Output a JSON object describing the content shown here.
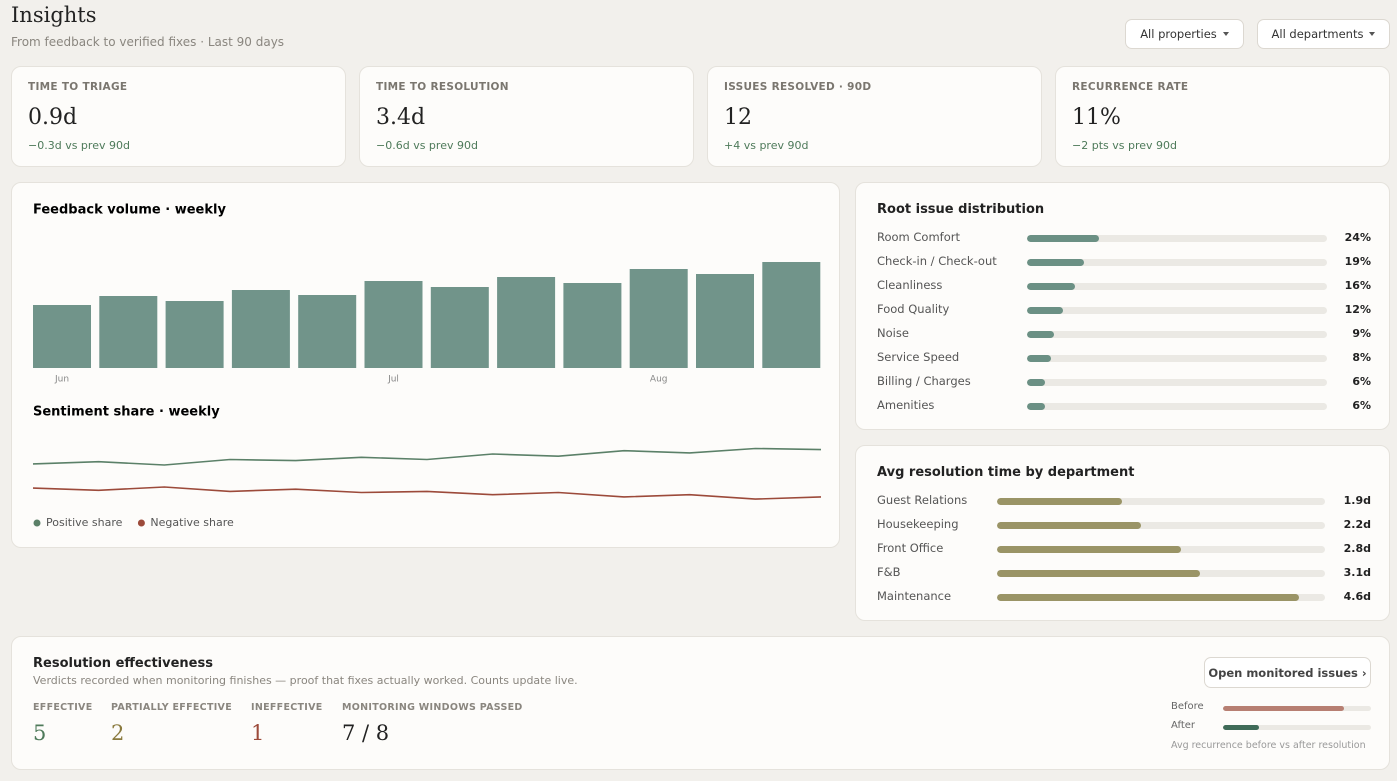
{
  "header": {
    "title": "Insights",
    "subtitle": "From feedback to verified fixes · Last 90 days",
    "filters": [
      "All properties",
      "All departments"
    ]
  },
  "kpis": [
    {
      "label": "TIME TO TRIAGE",
      "value": "0.9d",
      "delta": "−0.3d vs prev 90d"
    },
    {
      "label": "TIME TO RESOLUTION",
      "value": "3.4d",
      "delta": "−0.6d vs prev 90d"
    },
    {
      "label": "ISSUES RESOLVED · 90D",
      "value": "12",
      "delta": "+4 vs prev 90d"
    },
    {
      "label": "RECURRENCE RATE",
      "value": "11%",
      "delta": "−2 pts vs prev 90d"
    }
  ],
  "chart_data": [
    {
      "type": "bar",
      "title": "Feedback volume · weekly",
      "categories": [
        "Jun",
        null,
        null,
        null,
        null,
        "Jul",
        null,
        null,
        null,
        "Aug",
        null,
        null
      ],
      "values": [
        63,
        72,
        67,
        78,
        73,
        87,
        81,
        91,
        85,
        99,
        94,
        106
      ],
      "color": "#71948a",
      "ylim": [
        0,
        120
      ]
    },
    {
      "type": "line",
      "title": "Sentiment share · weekly",
      "ylim": [
        0,
        100
      ],
      "series": [
        {
          "name": "Positive share",
          "color": "#5b8068",
          "values": [
            61,
            63,
            60,
            65,
            64,
            67,
            65,
            70,
            68,
            73,
            71,
            75,
            74
          ]
        },
        {
          "name": "Negative share",
          "color": "#9c4a3a",
          "values": [
            39,
            37,
            40,
            36,
            38,
            35,
            36,
            33,
            35,
            31,
            33,
            29,
            31
          ]
        }
      ]
    },
    {
      "type": "hbar",
      "title": "Root issue distribution",
      "categories": [
        "Room Comfort",
        "Check-in / Check-out",
        "Cleanliness",
        "Food Quality",
        "Noise",
        "Service Speed",
        "Billing / Charges",
        "Amenities"
      ],
      "values": [
        24,
        19,
        16,
        12,
        9,
        8,
        6,
        6
      ],
      "value_labels": [
        "24%",
        "19%",
        "16%",
        "12%",
        "9%",
        "8%",
        "6%",
        "6%"
      ],
      "xlim": [
        0,
        100
      ],
      "color": "#6b9084"
    },
    {
      "type": "hbar",
      "title": "Avg resolution time by department",
      "categories": [
        "Guest Relations",
        "Housekeeping",
        "Front Office",
        "F&B",
        "Maintenance"
      ],
      "values": [
        1.9,
        2.2,
        2.8,
        3.1,
        4.6
      ],
      "value_labels": [
        "1.9d",
        "2.2d",
        "2.8d",
        "3.1d",
        "4.6d"
      ],
      "xlim": [
        0,
        5
      ],
      "color": "#9a9466"
    },
    {
      "type": "hbar",
      "caption": "Avg recurrence before vs after resolution",
      "categories": [
        "Before",
        "After"
      ],
      "values": [
        82,
        24
      ],
      "xlim": [
        0,
        100
      ],
      "colors": [
        "#b77f72",
        "#3f6b58"
      ]
    }
  ],
  "effectiveness": {
    "title": "Resolution effectiveness",
    "subtitle": "Verdicts recorded when monitoring finishes — proof that fixes actually worked. Counts update live.",
    "button": "Open monitored issues ›",
    "stats": [
      {
        "label": "EFFECTIVE",
        "value": "5"
      },
      {
        "label": "PARTIALLY EFFECTIVE",
        "value": "2"
      },
      {
        "label": "INEFFECTIVE",
        "value": "1"
      },
      {
        "label": "MONITORING WINDOWS PASSED",
        "value": "7 / 8"
      }
    ]
  }
}
